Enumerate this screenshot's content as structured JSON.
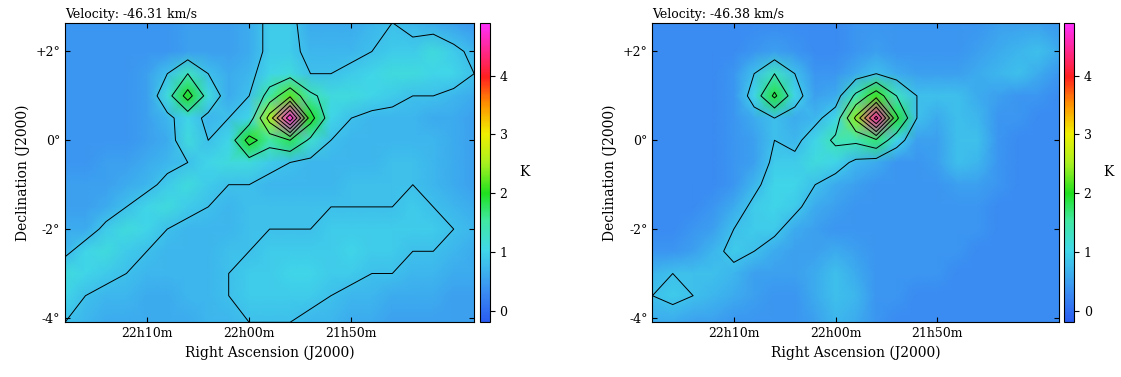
{
  "chart_data": [
    {
      "type": "heatmap",
      "title": "Velocity: -46.31 km/s",
      "x_label": "Right Ascension (J2000)",
      "y_label": "Declination (J2000)",
      "x": [
        334.5,
        334.0,
        333.5,
        333.0,
        332.5,
        332.0,
        331.5,
        331.0,
        330.5,
        330.0,
        329.5,
        329.0,
        328.5,
        328.0,
        327.5,
        327.0,
        326.5,
        326.0,
        325.5,
        325.0,
        324.5
      ],
      "y": [
        2.65,
        2.0,
        1.5,
        1.0,
        0.5,
        0.0,
        -0.5,
        -1.0,
        -1.5,
        -2.0,
        -2.5,
        -3.0,
        -3.5,
        -4.1
      ],
      "cells": [
        [
          0.4,
          0.4,
          0.4,
          0.4,
          0.4,
          0.4,
          0.5,
          0.5,
          0.5,
          0.6,
          0.9,
          0.9,
          0.6,
          0.6,
          0.6,
          0.7,
          0.8,
          0.7,
          0.6,
          0.5,
          0.4
        ],
        [
          0.4,
          0.4,
          0.4,
          0.4,
          0.4,
          0.4,
          0.5,
          0.5,
          0.5,
          0.6,
          0.9,
          0.9,
          0.7,
          0.7,
          0.7,
          0.8,
          0.9,
          0.9,
          1.1,
          0.9,
          0.7
        ],
        [
          0.4,
          0.4,
          0.4,
          0.4,
          0.5,
          0.8,
          1.3,
          0.8,
          0.6,
          0.7,
          1.0,
          1.1,
          0.8,
          0.8,
          0.9,
          1.0,
          1.1,
          1.1,
          1.0,
          1.0,
          0.8
        ],
        [
          0.4,
          0.4,
          0.4,
          0.4,
          0.5,
          1.1,
          2.0,
          1.1,
          0.6,
          0.8,
          1.5,
          2.2,
          1.4,
          1.1,
          1.1,
          1.0,
          0.9,
          0.8,
          0.8,
          0.7,
          0.6
        ],
        [
          0.4,
          0.4,
          0.4,
          0.4,
          0.5,
          0.7,
          1.0,
          0.7,
          0.8,
          1.0,
          2.5,
          4.7,
          2.0,
          1.0,
          0.8,
          0.7,
          0.7,
          0.7,
          0.6,
          0.6,
          0.5
        ],
        [
          0.4,
          0.4,
          0.4,
          0.4,
          0.5,
          0.6,
          1.1,
          0.8,
          1.0,
          2.0,
          1.5,
          1.8,
          1.2,
          0.8,
          0.7,
          0.7,
          0.7,
          0.7,
          0.7,
          0.6,
          0.5
        ],
        [
          0.4,
          0.4,
          0.5,
          0.5,
          0.6,
          0.7,
          0.8,
          1.0,
          1.1,
          1.1,
          0.9,
          0.8,
          0.7,
          0.7,
          0.7,
          0.7,
          0.8,
          0.8,
          0.7,
          0.6,
          0.5
        ],
        [
          0.5,
          0.5,
          0.5,
          0.6,
          0.7,
          0.9,
          1.1,
          0.9,
          0.8,
          0.8,
          0.7,
          0.7,
          0.7,
          0.7,
          0.8,
          0.8,
          0.8,
          0.8,
          0.7,
          0.6,
          0.5
        ],
        [
          0.5,
          0.5,
          0.6,
          0.8,
          1.0,
          1.1,
          0.9,
          0.8,
          0.7,
          0.8,
          0.8,
          0.8,
          0.8,
          0.8,
          0.8,
          0.8,
          0.8,
          0.9,
          0.8,
          0.7,
          0.6
        ],
        [
          0.6,
          0.6,
          0.9,
          1.1,
          1.0,
          0.8,
          0.7,
          0.7,
          0.7,
          0.8,
          0.8,
          0.8,
          0.8,
          0.9,
          0.9,
          0.9,
          0.9,
          0.9,
          0.9,
          0.8,
          0.7
        ],
        [
          0.7,
          1.0,
          1.1,
          0.9,
          0.8,
          0.7,
          0.7,
          0.7,
          0.8,
          0.8,
          0.9,
          0.9,
          0.9,
          0.9,
          1.0,
          0.9,
          0.9,
          0.8,
          0.8,
          0.7,
          0.6
        ],
        [
          1.1,
          1.0,
          0.9,
          0.8,
          0.7,
          0.7,
          0.7,
          0.7,
          0.8,
          0.9,
          0.9,
          1.0,
          1.0,
          0.9,
          0.9,
          0.8,
          0.8,
          0.7,
          0.7,
          0.6,
          0.6
        ],
        [
          1.0,
          0.8,
          0.7,
          0.7,
          0.6,
          0.6,
          0.7,
          0.7,
          0.8,
          0.9,
          0.9,
          0.9,
          0.9,
          0.8,
          0.7,
          0.7,
          0.6,
          0.6,
          0.6,
          0.5,
          0.5
        ],
        [
          0.8,
          0.7,
          0.6,
          0.6,
          0.6,
          0.6,
          0.6,
          0.7,
          0.7,
          0.8,
          0.8,
          0.8,
          0.7,
          0.7,
          0.6,
          0.6,
          0.5,
          0.5,
          0.5,
          0.5,
          0.5
        ]
      ],
      "contour_levels": [
        0.8,
        1.3,
        1.8,
        2.3,
        2.8,
        3.3,
        3.8,
        4.3
      ],
      "xlim": [
        334.5,
        324.5
      ],
      "ylim": [
        -4.1,
        2.65
      ],
      "xticks": [
        {
          "value": 332.5,
          "label": "22h10m"
        },
        {
          "value": 330.0,
          "label": "22h00m"
        },
        {
          "value": 327.5,
          "label": "21h50m"
        }
      ],
      "yticks": [
        {
          "value": 2,
          "label": "+2°"
        },
        {
          "value": 0,
          "label": "0°"
        },
        {
          "value": -2,
          "label": "-2°"
        },
        {
          "value": -4,
          "label": "-4°"
        }
      ],
      "colorbar_label": "K",
      "colorbar_lim": [
        -0.2,
        4.9
      ],
      "colorbar_ticks": [
        0,
        1,
        2,
        3,
        4
      ]
    },
    {
      "type": "heatmap",
      "title": "Velocity: -46.38 km/s",
      "x_label": "Right Ascension (J2000)",
      "y_label": "Declination (J2000)",
      "x": [
        334.5,
        334.0,
        333.5,
        333.0,
        332.5,
        332.0,
        331.5,
        331.0,
        330.5,
        330.0,
        329.5,
        329.0,
        328.5,
        328.0,
        327.5,
        327.0,
        326.5,
        326.0,
        325.5,
        325.0,
        324.5
      ],
      "y": [
        2.65,
        2.0,
        1.5,
        1.0,
        0.5,
        0.0,
        -0.5,
        -1.0,
        -1.5,
        -2.0,
        -2.5,
        -3.0,
        -3.5,
        -4.1
      ],
      "cells": [
        [
          0.3,
          0.3,
          0.3,
          0.3,
          0.3,
          0.3,
          0.3,
          0.3,
          0.3,
          0.3,
          0.4,
          0.4,
          0.4,
          0.4,
          0.4,
          0.4,
          0.4,
          0.5,
          0.5,
          0.5,
          0.4
        ],
        [
          0.3,
          0.3,
          0.3,
          0.3,
          0.3,
          0.4,
          0.5,
          0.4,
          0.3,
          0.3,
          0.4,
          0.5,
          0.4,
          0.4,
          0.4,
          0.4,
          0.5,
          0.6,
          0.7,
          0.8,
          0.6
        ],
        [
          0.3,
          0.3,
          0.3,
          0.3,
          0.4,
          0.8,
          1.3,
          0.8,
          0.4,
          0.4,
          0.6,
          0.8,
          0.6,
          0.5,
          0.5,
          0.5,
          0.6,
          0.7,
          0.8,
          0.6,
          0.4
        ],
        [
          0.3,
          0.3,
          0.3,
          0.3,
          0.4,
          1.0,
          1.9,
          1.0,
          0.5,
          0.6,
          1.4,
          2.1,
          1.3,
          0.8,
          0.8,
          0.8,
          0.6,
          0.5,
          0.4,
          0.4,
          0.3
        ],
        [
          0.3,
          0.3,
          0.3,
          0.3,
          0.4,
          0.6,
          0.8,
          0.6,
          0.7,
          1.0,
          2.4,
          4.5,
          1.9,
          0.8,
          0.6,
          0.8,
          0.7,
          0.4,
          0.4,
          0.3,
          0.3
        ],
        [
          0.3,
          0.3,
          0.3,
          0.3,
          0.4,
          0.5,
          0.8,
          0.7,
          1.0,
          1.4,
          1.4,
          1.7,
          1.0,
          0.5,
          0.5,
          0.8,
          0.8,
          0.4,
          0.3,
          0.3,
          0.3
        ],
        [
          0.3,
          0.3,
          0.3,
          0.3,
          0.4,
          0.5,
          0.9,
          0.9,
          1.1,
          1.0,
          0.7,
          0.6,
          0.4,
          0.4,
          0.5,
          0.8,
          0.7,
          0.4,
          0.3,
          0.3,
          0.3
        ],
        [
          0.3,
          0.3,
          0.3,
          0.3,
          0.4,
          0.7,
          1.0,
          1.0,
          0.8,
          0.6,
          0.5,
          0.4,
          0.4,
          0.4,
          0.4,
          0.5,
          0.5,
          0.4,
          0.3,
          0.3,
          0.3
        ],
        [
          0.3,
          0.3,
          0.3,
          0.4,
          0.6,
          0.9,
          1.0,
          0.9,
          0.6,
          0.5,
          0.4,
          0.4,
          0.4,
          0.4,
          0.4,
          0.4,
          0.4,
          0.3,
          0.3,
          0.3,
          0.3
        ],
        [
          0.3,
          0.3,
          0.4,
          0.5,
          0.8,
          0.9,
          0.9,
          0.6,
          0.5,
          0.4,
          0.4,
          0.4,
          0.4,
          0.4,
          0.4,
          0.4,
          0.4,
          0.3,
          0.3,
          0.3,
          0.3
        ],
        [
          0.4,
          0.4,
          0.5,
          0.7,
          0.9,
          0.8,
          0.6,
          0.5,
          0.5,
          0.6,
          0.5,
          0.4,
          0.4,
          0.4,
          0.4,
          0.4,
          0.3,
          0.3,
          0.3,
          0.3,
          0.3
        ],
        [
          0.7,
          0.8,
          0.8,
          0.8,
          0.7,
          0.5,
          0.5,
          0.5,
          0.6,
          0.8,
          0.6,
          0.4,
          0.4,
          0.4,
          0.4,
          0.3,
          0.3,
          0.3,
          0.3,
          0.3,
          0.3
        ],
        [
          0.8,
          0.9,
          0.8,
          0.7,
          0.6,
          0.5,
          0.4,
          0.4,
          0.6,
          0.8,
          0.7,
          0.4,
          0.4,
          0.3,
          0.3,
          0.3,
          0.3,
          0.3,
          0.3,
          0.3,
          0.3
        ],
        [
          0.6,
          0.6,
          0.5,
          0.5,
          0.4,
          0.4,
          0.4,
          0.4,
          0.5,
          0.7,
          0.6,
          0.4,
          0.3,
          0.3,
          0.3,
          0.3,
          0.3,
          0.3,
          0.3,
          0.3,
          0.3
        ]
      ],
      "contour_levels": [
        0.8,
        1.3,
        1.8,
        2.3,
        2.8,
        3.3,
        3.8,
        4.3
      ],
      "xlim": [
        334.5,
        324.5
      ],
      "ylim": [
        -4.1,
        2.65
      ],
      "xticks": [
        {
          "value": 332.5,
          "label": "22h10m"
        },
        {
          "value": 330.0,
          "label": "22h00m"
        },
        {
          "value": 327.5,
          "label": "21h50m"
        }
      ],
      "yticks": [
        {
          "value": 2,
          "label": "+2°"
        },
        {
          "value": 0,
          "label": "0°"
        },
        {
          "value": -2,
          "label": "-2°"
        },
        {
          "value": -4,
          "label": "-4°"
        }
      ],
      "colorbar_label": "K",
      "colorbar_lim": [
        -0.2,
        4.9
      ],
      "colorbar_ticks": [
        0,
        1,
        2,
        3,
        4
      ]
    }
  ]
}
